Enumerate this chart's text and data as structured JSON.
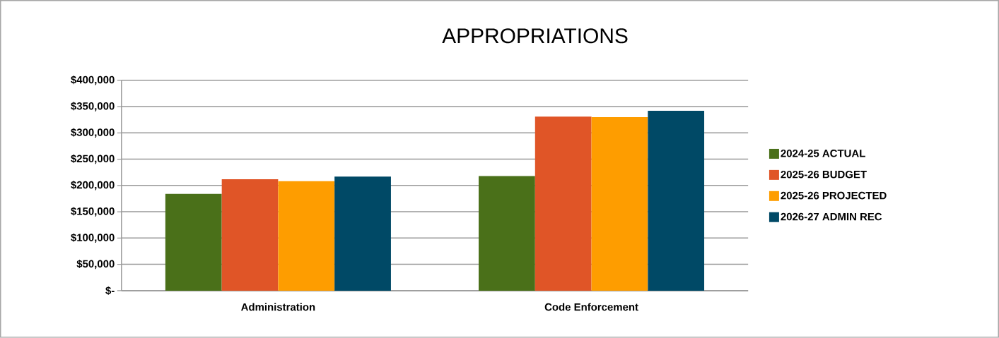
{
  "chart_data": {
    "type": "bar",
    "title": "APPROPRIATIONS",
    "categories": [
      "Administration",
      "Code Enforcement"
    ],
    "series": [
      {
        "name": "2024-25 ACTUAL",
        "color": "#4a7019",
        "values": [
          184000,
          218000
        ]
      },
      {
        "name": "2025-26 BUDGET",
        "color": "#e05527",
        "values": [
          212000,
          331000
        ]
      },
      {
        "name": "2025-26 PROJECTED",
        "color": "#fe9d00",
        "values": [
          208000,
          330000
        ]
      },
      {
        "name": "2026-27 ADMIN REC",
        "color": "#004966",
        "values": [
          217000,
          342000
        ]
      }
    ],
    "ylim": [
      0,
      400000
    ],
    "yticks": [
      {
        "value": 0,
        "label": "$-"
      },
      {
        "value": 50000,
        "label": "$50,000"
      },
      {
        "value": 100000,
        "label": "$100,000"
      },
      {
        "value": 150000,
        "label": "$150,000"
      },
      {
        "value": 200000,
        "label": "$200,000"
      },
      {
        "value": 250000,
        "label": "$250,000"
      },
      {
        "value": 300000,
        "label": "$300,000"
      },
      {
        "value": 350000,
        "label": "$350,000"
      },
      {
        "value": 400000,
        "label": "$400,000"
      }
    ],
    "grid": "y",
    "legend": "right"
  }
}
